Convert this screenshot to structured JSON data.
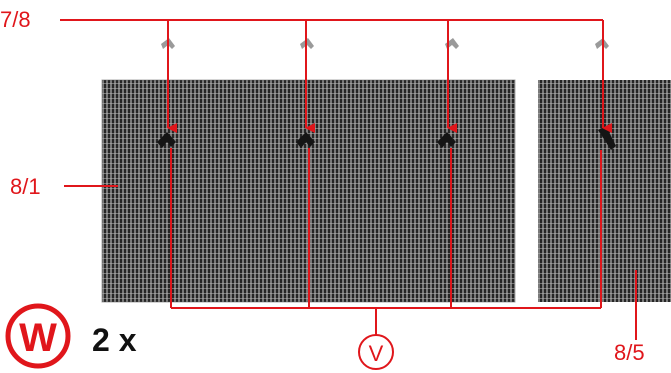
{
  "labels": {
    "top_left": "7/8",
    "left": "8/1",
    "bottom_right": "8/5",
    "center_circle": "V",
    "badge_circle": "W",
    "quantity": "2 x"
  },
  "colors": {
    "accent_red": "#e0161b",
    "mesh_dark": "#2b2b2b",
    "mesh_light": "#8a8a8a",
    "text_dark": "#111111"
  },
  "parts": [
    {
      "id": "mesh-panel-large",
      "clip_count": 3
    },
    {
      "id": "mesh-panel-small",
      "clip_count": 1
    }
  ],
  "icons": [
    "clip-icon",
    "wall-clip-icon",
    "arrow-down-icon"
  ]
}
